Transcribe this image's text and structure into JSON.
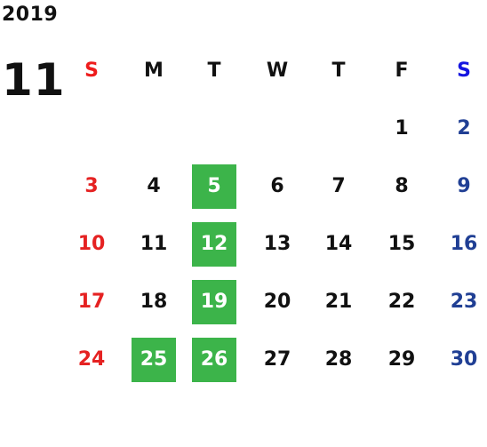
{
  "calendar": {
    "year": "2019",
    "month": "11",
    "weekdays": [
      "S",
      "M",
      "T",
      "W",
      "T",
      "F",
      "S"
    ],
    "weeks": [
      [
        "",
        "",
        "",
        "",
        "",
        "1",
        "2"
      ],
      [
        "3",
        "4",
        "5",
        "6",
        "7",
        "8",
        "9"
      ],
      [
        "10",
        "11",
        "12",
        "13",
        "14",
        "15",
        "16"
      ],
      [
        "17",
        "18",
        "19",
        "20",
        "21",
        "22",
        "23"
      ],
      [
        "24",
        "25",
        "26",
        "27",
        "28",
        "29",
        "30"
      ]
    ],
    "highlighted_days": [
      "5",
      "12",
      "19",
      "25",
      "26"
    ]
  },
  "colors": {
    "sunday_header": "#ee1c1c",
    "saturday_header": "#1515e0",
    "sunday": "#e52222",
    "saturday": "#203f94",
    "weekday": "#111111",
    "highlight_bg": "#3cb44a",
    "highlight_text": "#ffffff"
  }
}
